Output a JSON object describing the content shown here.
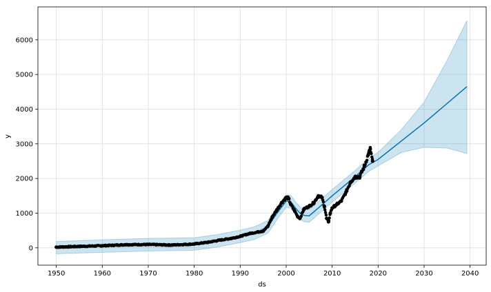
{
  "chart_data": {
    "type": "line",
    "title": "",
    "xlabel": "ds",
    "ylabel": "y",
    "xlim": [
      1946.0,
      2043.5
    ],
    "ylim": [
      -500,
      6950
    ],
    "grid": true,
    "legend": "none",
    "xticks": [
      1950,
      1960,
      1970,
      1980,
      1990,
      2000,
      2010,
      2020,
      2030,
      2040
    ],
    "yticks": [
      0,
      1000,
      2000,
      3000,
      4000,
      5000,
      6000
    ],
    "series": [
      {
        "role": "observed",
        "style": "points",
        "color": "#000000",
        "x": [
          1950,
          1955,
          1960,
          1965,
          1970,
          1975,
          1980,
          1983,
          1986,
          1988,
          1990,
          1992,
          1994,
          1995,
          1996,
          1997,
          1998,
          1999,
          2000,
          2000.5,
          2001,
          2001.7,
          2002.5,
          2003,
          2003.8,
          2004,
          2005,
          2006,
          2007,
          2007.8,
          2008.3,
          2008.8,
          2009.2,
          2009.6,
          2010,
          2011,
          2012,
          2013,
          2014,
          2015,
          2016,
          2017,
          2018,
          2018.3,
          2018.8
        ],
        "y": [
          20,
          40,
          60,
          90,
          95,
          80,
          110,
          160,
          230,
          270,
          330,
          410,
          460,
          480,
          620,
          900,
          1100,
          1300,
          1450,
          1430,
          1250,
          1100,
          900,
          850,
          1100,
          1130,
          1200,
          1300,
          1500,
          1450,
          1200,
          850,
          750,
          1000,
          1150,
          1250,
          1350,
          1600,
          1900,
          2050,
          2050,
          2350,
          2750,
          2850,
          2500
        ]
      },
      {
        "role": "forecast",
        "style": "line",
        "color": "#0072b2",
        "x": [
          1950,
          1960,
          1970,
          1980,
          1985,
          1990,
          1993,
          1996,
          1998,
          2000,
          2001,
          2002,
          2003,
          2004,
          2005,
          2007,
          2010,
          2015,
          2018,
          2020,
          2030,
          2039.3
        ],
        "y": [
          0,
          50,
          90,
          110,
          200,
          330,
          420,
          600,
          1000,
          1350,
          1330,
          1150,
          1000,
          930,
          920,
          1150,
          1500,
          2050,
          2400,
          2550,
          3600,
          4650
        ]
      },
      {
        "role": "uncertainty-upper",
        "style": "band",
        "color": "#0072b2",
        "x": [
          1950,
          1960,
          1970,
          1980,
          1985,
          1990,
          1993,
          1996,
          1998,
          2000,
          2001,
          2002,
          2003,
          2004,
          2005,
          2007,
          2010,
          2015,
          2018,
          2020,
          2025,
          2030,
          2035,
          2039.3
        ],
        "y": [
          180,
          230,
          270,
          290,
          380,
          510,
          600,
          780,
          1180,
          1530,
          1510,
          1330,
          1180,
          1110,
          1100,
          1330,
          1680,
          2230,
          2590,
          2750,
          3400,
          4200,
          5400,
          6550
        ]
      },
      {
        "role": "uncertainty-lower",
        "style": "band",
        "color": "#0072b2",
        "x": [
          1950,
          1960,
          1970,
          1980,
          1985,
          1990,
          1993,
          1996,
          1998,
          2000,
          2001,
          2002,
          2003,
          2004,
          2005,
          2007,
          2010,
          2015,
          2018,
          2020,
          2025,
          2030,
          2035,
          2039.3
        ],
        "y": [
          -170,
          -130,
          -90,
          -70,
          20,
          150,
          240,
          420,
          820,
          1170,
          1150,
          970,
          820,
          750,
          740,
          970,
          1320,
          1870,
          2210,
          2360,
          2750,
          2900,
          2880,
          2720
        ]
      }
    ]
  }
}
